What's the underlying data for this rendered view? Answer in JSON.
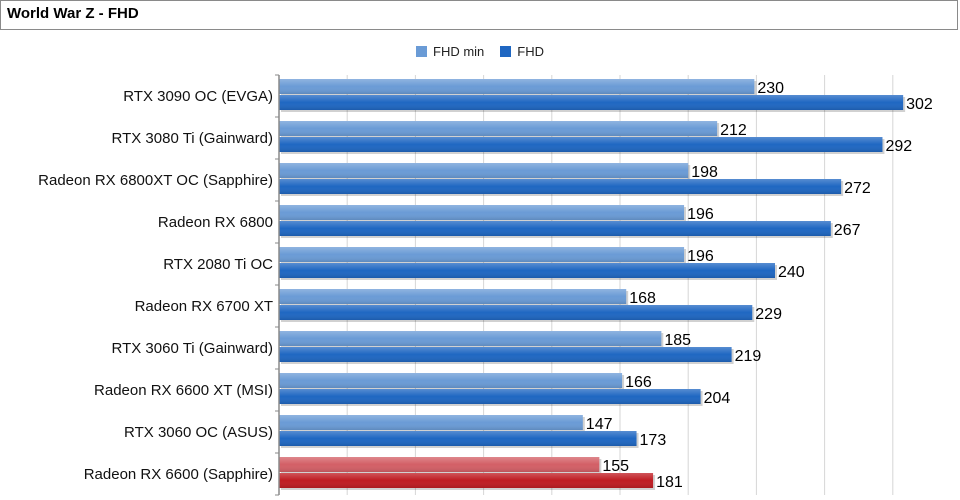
{
  "title": "World War Z - FHD",
  "colors": {
    "min": "#6a9bd6",
    "fhd": "#1f67c2",
    "highlight_min": "#d35f66",
    "highlight_fhd": "#bf1c22",
    "grid": "#d6d6d6",
    "axis": "#8a8a8a"
  },
  "chart_data": {
    "type": "bar",
    "orientation": "horizontal",
    "title": "World War Z - FHD",
    "categories": [
      "RTX 3090 OC (EVGA)",
      "RTX 3080 Ti (Gainward)",
      "Radeon RX 6800XT OC (Sapphire)",
      "Radeon RX 6800",
      "RTX 2080 Ti OC",
      "Radeon RX 6700 XT",
      "RTX 3060 Ti (Gainward)",
      "Radeon RX 6600 XT (MSI)",
      "RTX 3060 OC (ASUS)",
      "Radeon RX 6600 (Sapphire)"
    ],
    "series": [
      {
        "name": "FHD min",
        "values": [
          230,
          212,
          198,
          196,
          196,
          168,
          185,
          166,
          147,
          155
        ]
      },
      {
        "name": "FHD",
        "values": [
          302,
          292,
          272,
          267,
          240,
          229,
          219,
          204,
          173,
          181
        ]
      }
    ],
    "highlight_category": "Radeon RX 6600 (Sapphire)",
    "xlim": [
      0,
      330
    ],
    "grid": true,
    "legend_position": "top"
  }
}
